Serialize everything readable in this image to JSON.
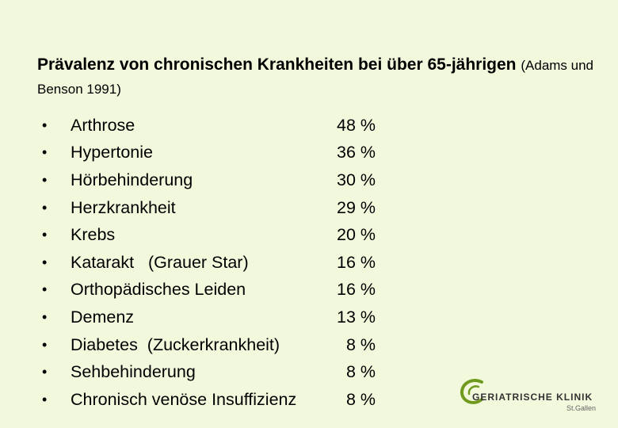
{
  "title": {
    "main": "Prävalenz von chronischen Krankheiten bei über 65-jährigen",
    "citation": "(Adams und Benson 1991)"
  },
  "bullet_symbol": "•",
  "items": [
    {
      "label": "Arthrose",
      "value": "48 %"
    },
    {
      "label": "Hypertonie",
      "value": "36 %"
    },
    {
      "label": "Hörbehinderung",
      "value": "30 %"
    },
    {
      "label": "Herzkrankheit",
      "value": "29 %"
    },
    {
      "label": "Krebs",
      "value": "20 %"
    },
    {
      "label": "Katarakt   (Grauer Star)",
      "value": "16 %"
    },
    {
      "label": "Orthopädisches Leiden",
      "value": "16 %"
    },
    {
      "label": "Demenz",
      "value": "13 %"
    },
    {
      "label": "Diabetes  (Zuckerkrankheit)",
      "value": "8 %"
    },
    {
      "label": "Sehbehinderung",
      "value": "8 %"
    },
    {
      "label": "Chronisch venöse Insuffizienz",
      "value": "8 %"
    }
  ],
  "logo": {
    "name": "GERIATRISCHE KLINIK",
    "city": "St.Gallen",
    "accent": "#6f9a1e"
  }
}
